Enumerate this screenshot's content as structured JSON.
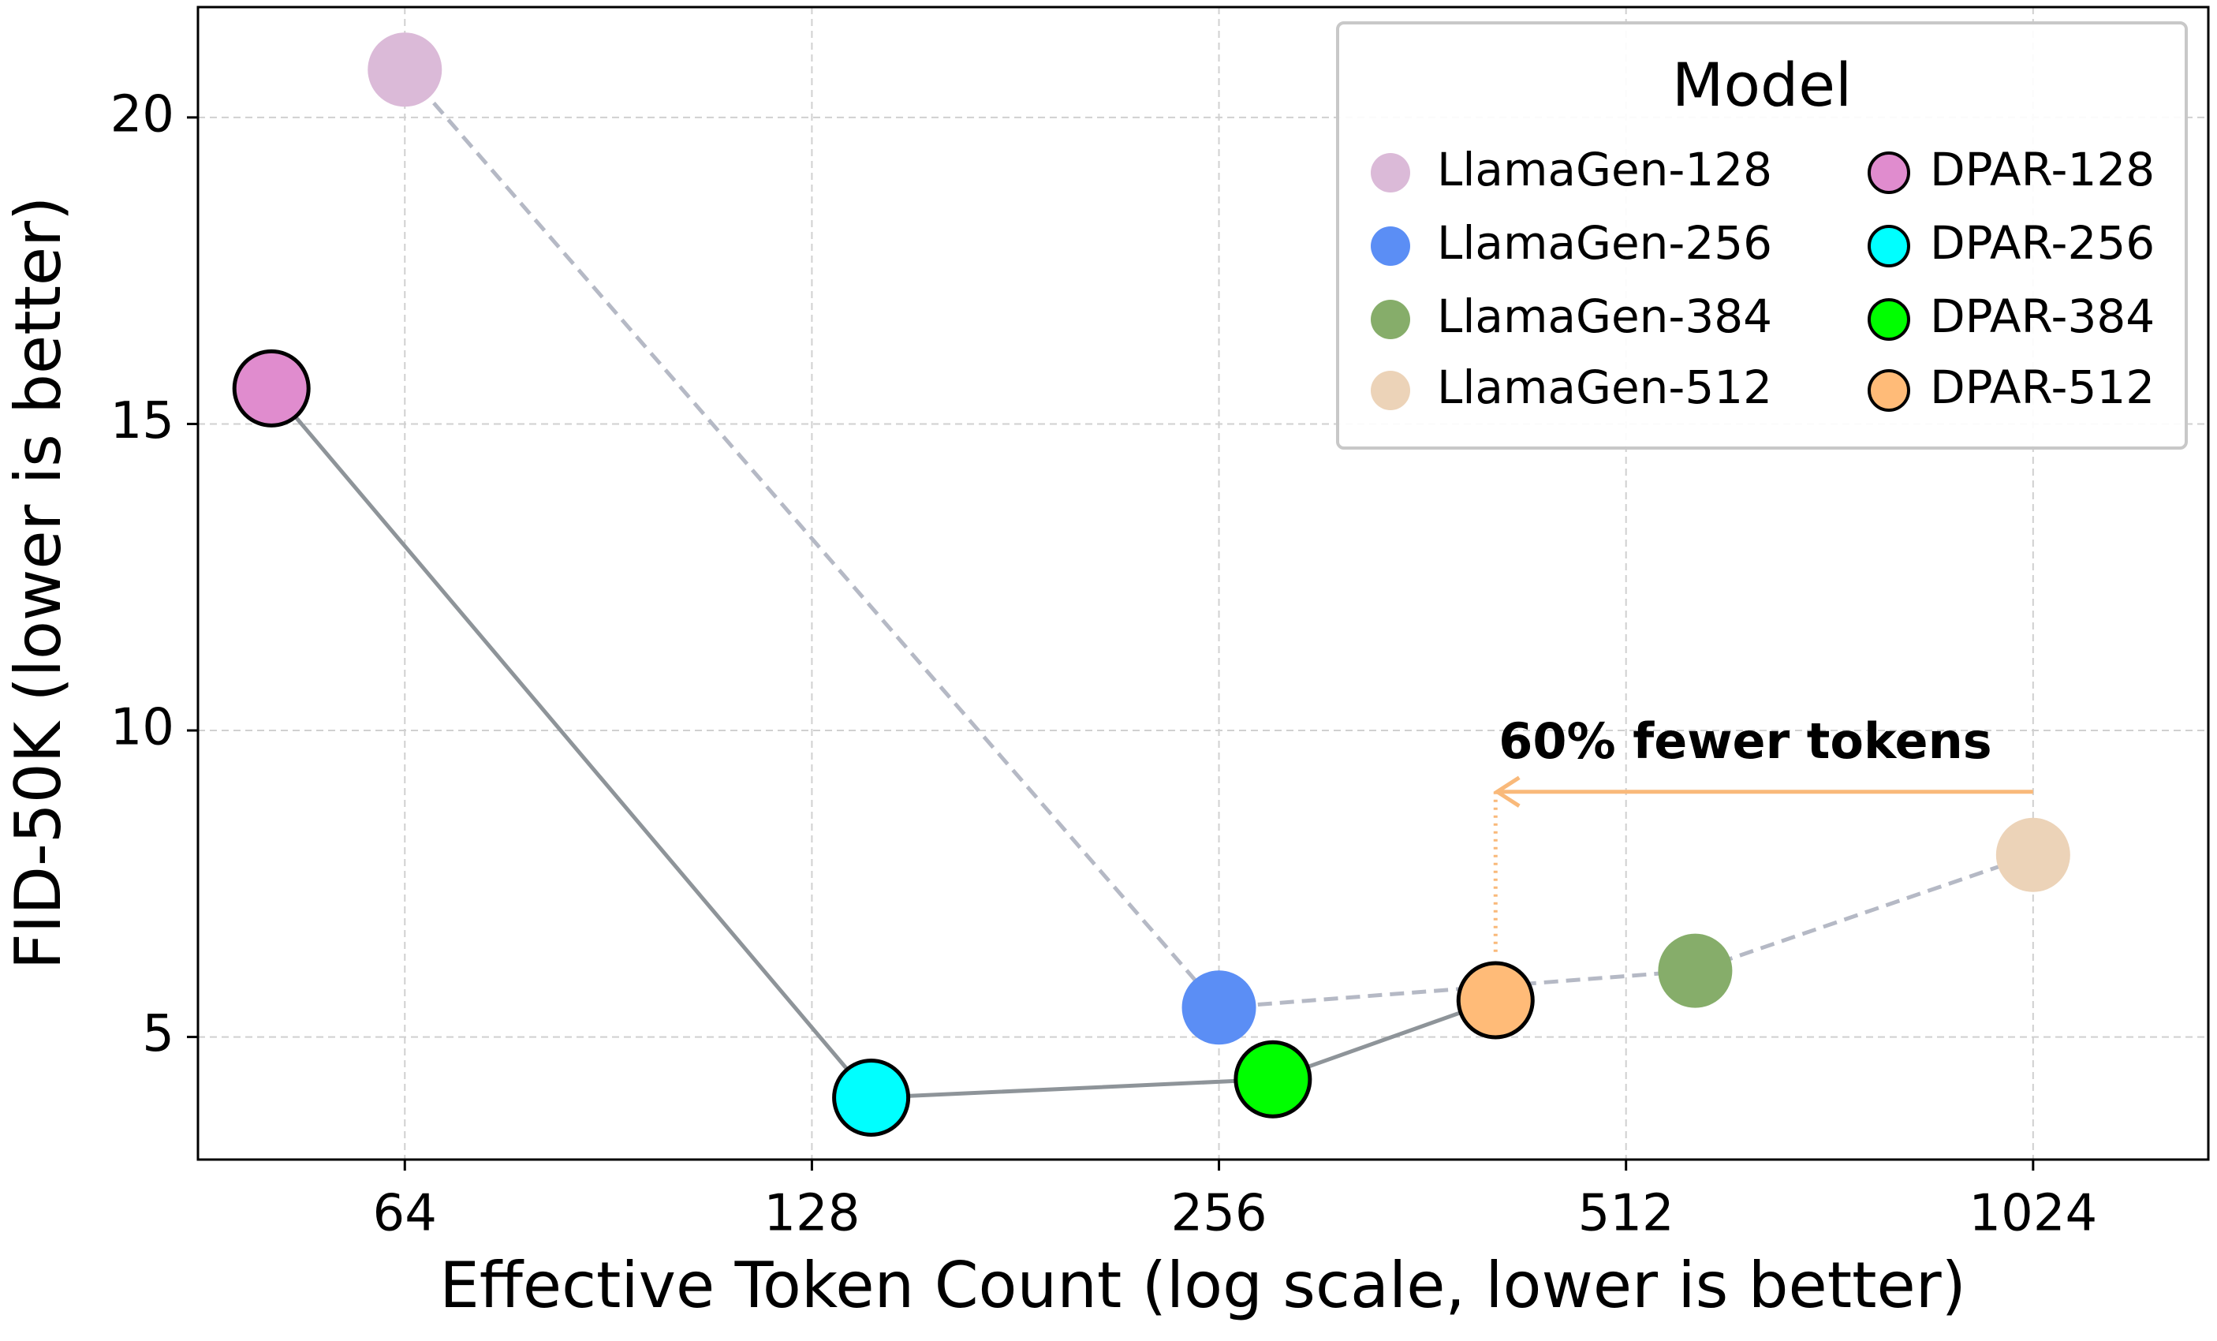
{
  "chart_data": {
    "type": "scatter",
    "xlabel": "Effective Token Count (log scale, lower is better)",
    "ylabel": "FID-50K (lower is better)",
    "xscale": "log",
    "xlim": [
      45,
      1380
    ],
    "xticks": [
      64,
      128,
      256,
      512,
      1024
    ],
    "ylim": [
      3,
      21.8
    ],
    "yticks": [
      5,
      10,
      15,
      20
    ],
    "grid": true,
    "legend": {
      "title": "Model",
      "loc": "upper right"
    },
    "series": [
      {
        "name": "LlamaGen",
        "linestyle": "dashed",
        "line_color": "#b5b9c5",
        "edgecolor": "none",
        "point_names": [
          "LlamaGen-128",
          "LlamaGen-256",
          "LlamaGen-384",
          "LlamaGen-512"
        ],
        "colors": [
          "#dbbad8",
          "#5b8ef5",
          "#86ad6a",
          "#ecd3b8"
        ],
        "x": [
          64,
          256,
          576,
          1024
        ],
        "values": [
          20.78,
          5.48,
          6.08,
          7.97
        ]
      },
      {
        "name": "DPAR",
        "linestyle": "solid",
        "line_color": "#8e9499",
        "edgecolor": "#000000",
        "point_names": [
          "DPAR-128",
          "DPAR-256",
          "DPAR-384",
          "DPAR-512"
        ],
        "colors": [
          "#e08cce",
          "#00ffff",
          "#00ff00",
          "#ffbb78"
        ],
        "x": [
          51,
          141.6,
          280.6,
          410
        ],
        "values": [
          15.58,
          4.01,
          4.31,
          5.6
        ]
      }
    ],
    "annotation": {
      "text": "60% fewer tokens",
      "color": "#f9b97a",
      "x_from": 1024,
      "x_to": 410,
      "y": 9.0
    }
  }
}
